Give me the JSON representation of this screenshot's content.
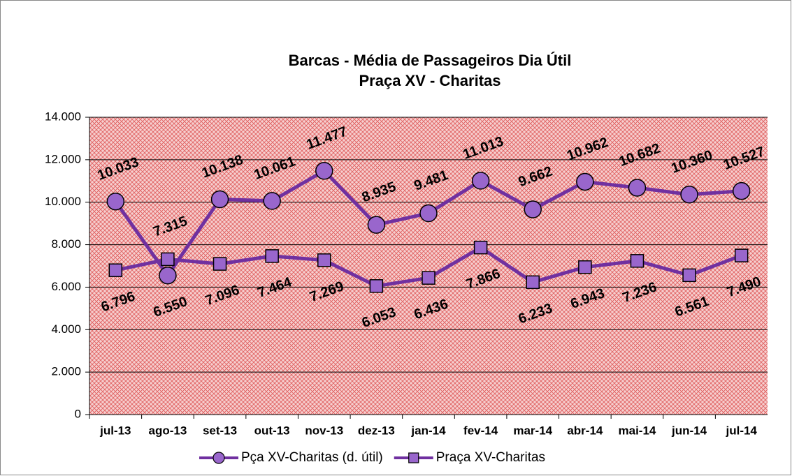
{
  "chart_data": {
    "type": "line",
    "title": "Barcas - Média de Passageiros Dia Útil",
    "subtitle": "Praça XV - Charitas",
    "categories": [
      "jul-13",
      "ago-13",
      "set-13",
      "out-13",
      "nov-13",
      "dez-13",
      "jan-14",
      "fev-14",
      "mar-14",
      "abr-14",
      "mai-14",
      "jun-14",
      "jul-14"
    ],
    "series": [
      {
        "name": "Pça XV-Charitas (d. útil)",
        "color": "#7030a0",
        "marker": "circle",
        "values": [
          10033,
          6550,
          10138,
          10061,
          11477,
          8935,
          9481,
          11013,
          9662,
          10962,
          10682,
          10360,
          10527
        ],
        "value_labels": [
          "10.033",
          "6.550",
          "10.138",
          "10.061",
          "11.477",
          "8.935",
          "9.481",
          "11.013",
          "9.662",
          "10.962",
          "10.682",
          "10.360",
          "10.527"
        ]
      },
      {
        "name": "Praça XV-Charitas",
        "color": "#7030a0",
        "marker": "square",
        "values": [
          6796,
          7315,
          7096,
          7464,
          7269,
          6053,
          6436,
          7866,
          6233,
          6943,
          7236,
          6561,
          7490
        ],
        "value_labels": [
          "6.796",
          "7.315",
          "7.096",
          "7.464",
          "7.269",
          "6.053",
          "6.436",
          "7.866",
          "6.233",
          "6.943",
          "7.236",
          "6.561",
          "7.490"
        ]
      }
    ],
    "ylim": [
      0,
      14000
    ],
    "yticks": [
      0,
      {
        "value": 2000,
        "label": "2.000"
      },
      {
        "value": 4000,
        "label": "4.000"
      },
      {
        "value": 6000,
        "label": "6.000"
      },
      {
        "value": 8000,
        "label": "8.000"
      },
      {
        "value": 10000,
        "label": "10.000"
      },
      {
        "value": 12000,
        "label": "12.000"
      },
      {
        "value": 14000,
        "label": "14.000"
      }
    ],
    "grid": true,
    "legend": "bottom"
  }
}
